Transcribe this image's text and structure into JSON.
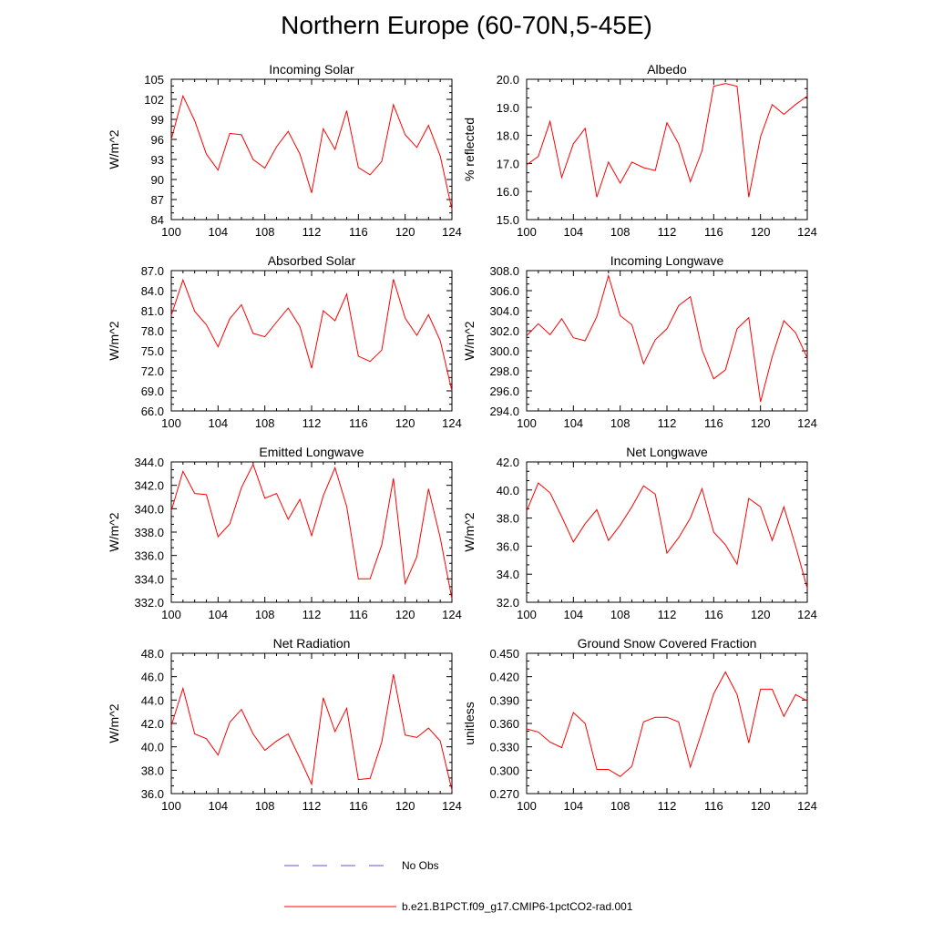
{
  "figure": {
    "title": "Northern Europe (60-70N,5-45E)",
    "line_color": "#ff0000",
    "obs_color": "#5a5acc"
  },
  "legend": {
    "obs_label": "No Obs",
    "model_label": "b.e21.B1PCT.f09_g17.CMIP6-1pctCO2-rad.001"
  },
  "chart_data": [
    {
      "type": "line",
      "title": "Incoming Solar",
      "xlabel": "",
      "ylabel": "W/m^2",
      "xlim": [
        100,
        124
      ],
      "xticks": [
        100,
        104,
        108,
        112,
        116,
        120,
        124
      ],
      "ylim": [
        84,
        105
      ],
      "yticks": [
        "84",
        "87",
        "90",
        "93",
        "96",
        "99",
        "102",
        "105"
      ],
      "x": [
        100,
        101,
        102,
        103,
        104,
        105,
        106,
        107,
        108,
        109,
        110,
        111,
        112,
        113,
        114,
        115,
        116,
        117,
        118,
        119,
        120,
        121,
        122,
        123,
        124
      ],
      "series": [
        {
          "values": [
            96.0,
            102.5,
            98.8,
            93.8,
            91.4,
            96.9,
            96.7,
            93.0,
            91.7,
            94.9,
            97.2,
            93.8,
            88.0,
            97.6,
            94.5,
            100.3,
            91.8,
            90.7,
            92.7,
            101.2,
            96.7,
            94.8,
            98.1,
            93.5,
            85.5
          ]
        }
      ]
    },
    {
      "type": "line",
      "title": "Albedo",
      "xlabel": "",
      "ylabel": "% reflected",
      "xlim": [
        100,
        124
      ],
      "xticks": [
        100,
        104,
        108,
        112,
        116,
        120,
        124
      ],
      "ylim": [
        15.0,
        20.0
      ],
      "yticks": [
        "15.0",
        "16.0",
        "17.0",
        "18.0",
        "19.0",
        "20.0"
      ],
      "x": [
        100,
        101,
        102,
        103,
        104,
        105,
        106,
        107,
        108,
        109,
        110,
        111,
        112,
        113,
        114,
        115,
        116,
        117,
        118,
        119,
        120,
        121,
        122,
        123,
        124
      ],
      "series": [
        {
          "values": [
            16.95,
            17.25,
            18.5,
            16.5,
            17.7,
            18.25,
            15.8,
            17.05,
            16.3,
            17.05,
            16.85,
            16.75,
            18.45,
            17.7,
            16.35,
            17.45,
            19.75,
            19.85,
            19.75,
            15.8,
            17.95,
            19.1,
            18.75,
            19.1,
            19.4
          ]
        }
      ]
    },
    {
      "type": "line",
      "title": "Absorbed Solar",
      "xlabel": "",
      "ylabel": "W/m^2",
      "xlim": [
        100,
        124
      ],
      "xticks": [
        100,
        104,
        108,
        112,
        116,
        120,
        124
      ],
      "ylim": [
        66.0,
        87.0
      ],
      "yticks": [
        "66.0",
        "69.0",
        "72.0",
        "75.0",
        "78.0",
        "81.0",
        "84.0",
        "87.0"
      ],
      "x": [
        100,
        101,
        102,
        103,
        104,
        105,
        106,
        107,
        108,
        109,
        110,
        111,
        112,
        113,
        114,
        115,
        116,
        117,
        118,
        119,
        120,
        121,
        122,
        123,
        124
      ],
      "series": [
        {
          "values": [
            80.3,
            85.6,
            80.9,
            78.9,
            75.6,
            79.8,
            81.9,
            77.6,
            77.1,
            79.3,
            81.4,
            78.6,
            72.4,
            81.0,
            79.5,
            83.5,
            74.2,
            73.4,
            75.1,
            85.7,
            79.9,
            77.3,
            80.4,
            76.5,
            69.0
          ]
        }
      ]
    },
    {
      "type": "line",
      "title": "Incoming Longwave",
      "xlabel": "",
      "ylabel": "W/m^2",
      "xlim": [
        100,
        124
      ],
      "xticks": [
        100,
        104,
        108,
        112,
        116,
        120,
        124
      ],
      "ylim": [
        294.0,
        308.0
      ],
      "yticks": [
        "294.0",
        "296.0",
        "298.0",
        "300.0",
        "302.0",
        "304.0",
        "306.0",
        "308.0"
      ],
      "x": [
        100,
        101,
        102,
        103,
        104,
        105,
        106,
        107,
        108,
        109,
        110,
        111,
        112,
        113,
        114,
        115,
        116,
        117,
        118,
        119,
        120,
        121,
        122,
        123,
        124
      ],
      "series": [
        {
          "values": [
            301.5,
            302.7,
            301.6,
            303.2,
            301.3,
            301.0,
            303.4,
            307.5,
            303.5,
            302.6,
            298.7,
            301.1,
            302.2,
            304.5,
            305.4,
            300.1,
            297.2,
            298.1,
            302.2,
            303.3,
            294.9,
            299.4,
            303.0,
            301.8,
            299.3
          ]
        }
      ]
    },
    {
      "type": "line",
      "title": "Emitted Longwave",
      "xlabel": "",
      "ylabel": "W/m^2",
      "xlim": [
        100,
        124
      ],
      "xticks": [
        100,
        104,
        108,
        112,
        116,
        120,
        124
      ],
      "ylim": [
        332.0,
        344.0
      ],
      "yticks": [
        "332.0",
        "334.0",
        "336.0",
        "338.0",
        "340.0",
        "342.0",
        "344.0"
      ],
      "x": [
        100,
        101,
        102,
        103,
        104,
        105,
        106,
        107,
        108,
        109,
        110,
        111,
        112,
        113,
        114,
        115,
        116,
        117,
        118,
        119,
        120,
        121,
        122,
        123,
        124
      ],
      "series": [
        {
          "values": [
            339.8,
            343.2,
            341.3,
            341.2,
            337.6,
            338.7,
            341.8,
            343.8,
            340.9,
            341.3,
            339.1,
            340.8,
            337.7,
            341.1,
            343.5,
            340.2,
            334.0,
            334.0,
            336.9,
            342.6,
            333.6,
            335.9,
            341.7,
            337.5,
            332.3
          ]
        }
      ]
    },
    {
      "type": "line",
      "title": "Net Longwave",
      "xlabel": "",
      "ylabel": "W/m^2",
      "xlim": [
        100,
        124
      ],
      "xticks": [
        100,
        104,
        108,
        112,
        116,
        120,
        124
      ],
      "ylim": [
        32.0,
        42.0
      ],
      "yticks": [
        "32.0",
        "34.0",
        "36.0",
        "38.0",
        "40.0",
        "42.0"
      ],
      "x": [
        100,
        101,
        102,
        103,
        104,
        105,
        106,
        107,
        108,
        109,
        110,
        111,
        112,
        113,
        114,
        115,
        116,
        117,
        118,
        119,
        120,
        121,
        122,
        123,
        124
      ],
      "series": [
        {
          "values": [
            38.5,
            40.5,
            39.8,
            38.1,
            36.3,
            37.6,
            38.6,
            36.4,
            37.5,
            38.8,
            40.3,
            39.7,
            35.5,
            36.6,
            38.0,
            40.1,
            37.0,
            36.1,
            34.7,
            39.4,
            38.8,
            36.4,
            38.8,
            36.0,
            33.0
          ]
        }
      ]
    },
    {
      "type": "line",
      "title": "Net Radiation",
      "xlabel": "",
      "ylabel": "W/m^2",
      "xlim": [
        100,
        124
      ],
      "xticks": [
        100,
        104,
        108,
        112,
        116,
        120,
        124
      ],
      "ylim": [
        36.0,
        48.0
      ],
      "yticks": [
        "36.0",
        "38.0",
        "40.0",
        "42.0",
        "44.0",
        "46.0",
        "48.0"
      ],
      "x": [
        100,
        101,
        102,
        103,
        104,
        105,
        106,
        107,
        108,
        109,
        110,
        111,
        112,
        113,
        114,
        115,
        116,
        117,
        118,
        119,
        120,
        121,
        122,
        123,
        124
      ],
      "series": [
        {
          "values": [
            41.8,
            45.0,
            41.1,
            40.7,
            39.3,
            42.1,
            43.2,
            41.1,
            39.7,
            40.5,
            41.1,
            39.0,
            36.8,
            44.2,
            41.3,
            43.3,
            37.2,
            37.3,
            40.4,
            46.2,
            41.0,
            40.8,
            41.6,
            40.5,
            36.3
          ]
        }
      ]
    },
    {
      "type": "line",
      "title": "Ground Snow Covered Fraction",
      "xlabel": "",
      "ylabel": "unitless",
      "xlim": [
        100,
        124
      ],
      "xticks": [
        100,
        104,
        108,
        112,
        116,
        120,
        124
      ],
      "ylim": [
        0.27,
        0.45
      ],
      "yticks": [
        "0.270",
        "0.300",
        "0.330",
        "0.360",
        "0.390",
        "0.420",
        "0.450"
      ],
      "x": [
        100,
        101,
        102,
        103,
        104,
        105,
        106,
        107,
        108,
        109,
        110,
        111,
        112,
        113,
        114,
        115,
        116,
        117,
        118,
        119,
        120,
        121,
        122,
        123,
        124
      ],
      "series": [
        {
          "values": [
            0.353,
            0.349,
            0.336,
            0.329,
            0.374,
            0.36,
            0.301,
            0.301,
            0.292,
            0.305,
            0.362,
            0.368,
            0.368,
            0.362,
            0.304,
            0.35,
            0.398,
            0.426,
            0.397,
            0.335,
            0.404,
            0.404,
            0.369,
            0.397,
            0.389
          ]
        }
      ]
    }
  ]
}
